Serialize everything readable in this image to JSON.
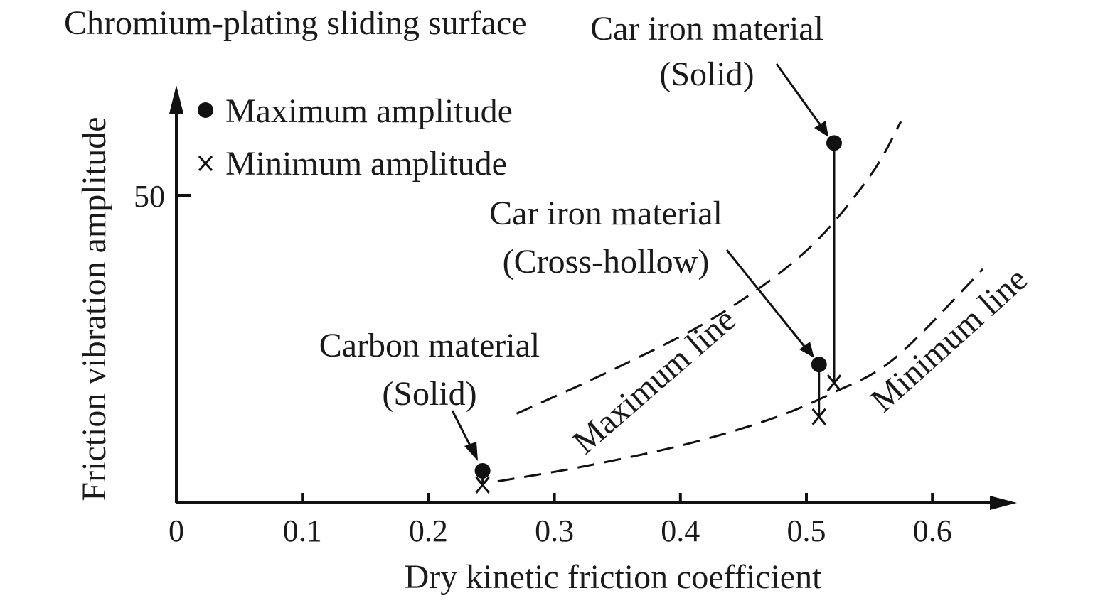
{
  "chart_data": {
    "type": "scatter",
    "title": "Chromium-plating sliding surface",
    "xlabel": "Dry kinetic friction coefficient",
    "ylabel": "Friction vibration amplitude",
    "x_ticks": [
      "0",
      "0.1",
      "0.2",
      "0.3",
      "0.4",
      "0.5",
      "0.6"
    ],
    "y_ticks": [
      "50"
    ],
    "xlim": [
      0,
      0.66
    ],
    "ylim": [
      0,
      68
    ],
    "legend": {
      "position": "top-left",
      "max_label": "Maximum amplitude",
      "min_label": "Minimum amplitude"
    },
    "materials": [
      {
        "label": "Carbon material",
        "sub": "(Solid)",
        "x": 0.243,
        "max": 5.2,
        "min": 2.9
      },
      {
        "label": "Car iron material",
        "sub": "(Cross-hollow)",
        "x": 0.51,
        "max": 22.5,
        "min": 14.0
      },
      {
        "label": "Car iron material",
        "sub": "(Solid)",
        "x": 0.522,
        "max": 58.5,
        "min": 19.5
      }
    ],
    "curves": [
      {
        "name": "Maximum line",
        "points": [
          [
            0.27,
            14.5
          ],
          [
            0.35,
            22
          ],
          [
            0.43,
            30.5
          ],
          [
            0.5,
            41
          ],
          [
            0.55,
            53
          ],
          [
            0.575,
            62
          ]
        ]
      },
      {
        "name": "Minimum line",
        "points": [
          [
            0.255,
            3.5
          ],
          [
            0.32,
            5.8
          ],
          [
            0.4,
            9.3
          ],
          [
            0.47,
            13.5
          ],
          [
            0.52,
            17.8
          ],
          [
            0.57,
            23.5
          ],
          [
            0.64,
            38
          ]
        ]
      }
    ]
  }
}
